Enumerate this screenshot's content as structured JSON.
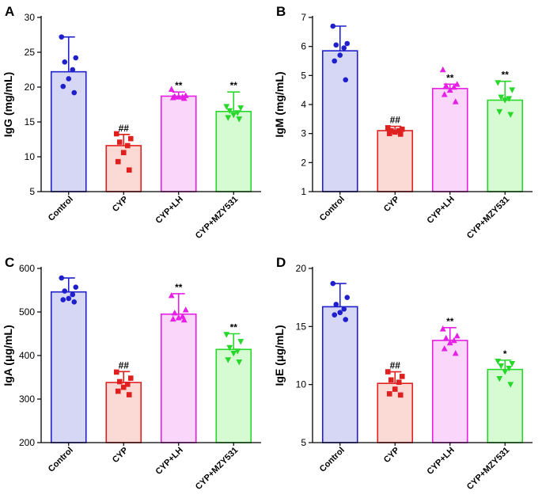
{
  "colors": {
    "blue": "#1f1fcc",
    "blue_fill": "#d6d6f5",
    "red": "#e0201f",
    "red_fill": "#fbd9d4",
    "magenta": "#e61ee6",
    "magenta_fill": "#fbd6fb",
    "green": "#27d82a",
    "green_fill": "#d6fbd3"
  },
  "chart_data": [
    {
      "panel": "A",
      "type": "bar",
      "ylabel": "IgG (mg/mL)",
      "ylim": [
        5,
        30
      ],
      "yticks": [
        5,
        10,
        15,
        20,
        25,
        30
      ],
      "categories": [
        "Control",
        "CYP",
        "CYP+LH",
        "CYP+MZY531"
      ],
      "values": [
        22.2,
        11.6,
        18.7,
        16.5
      ],
      "errors": [
        5.0,
        1.6,
        0.6,
        2.8
      ],
      "marker_shapes": [
        "circle",
        "square",
        "triangle-up",
        "triangle-down"
      ],
      "points": [
        [
          27.2,
          24.2,
          23.6,
          22.5,
          21.2,
          20.1,
          19.2
        ],
        [
          13.3,
          12.6,
          12.1,
          11.6,
          10.6,
          9.3,
          8.1
        ],
        [
          19.7,
          18.8,
          18.7,
          18.6,
          18.6,
          18.5,
          18.4
        ],
        [
          17.2,
          17.0,
          16.6,
          16.3,
          16.0,
          15.6,
          15.4
        ]
      ],
      "significance": [
        "",
        "##",
        "**",
        "**"
      ]
    },
    {
      "panel": "B",
      "type": "bar",
      "ylabel": "IgM (mg/mL)",
      "ylim": [
        1,
        7
      ],
      "yticks": [
        1,
        2,
        3,
        4,
        5,
        6,
        7
      ],
      "categories": [
        "Control",
        "CYP",
        "CYP+LH",
        "CYP+MZY531"
      ],
      "values": [
        5.85,
        3.1,
        4.55,
        4.15
      ],
      "errors": [
        0.85,
        0.15,
        0.15,
        0.65
      ],
      "marker_shapes": [
        "circle",
        "square",
        "triangle-up",
        "triangle-down"
      ],
      "points": [
        [
          6.7,
          6.1,
          6.05,
          5.95,
          5.7,
          5.5,
          4.85
        ],
        [
          3.2,
          3.15,
          3.1,
          3.1,
          3.05,
          3.0,
          2.98
        ],
        [
          5.2,
          4.7,
          4.65,
          4.6,
          4.5,
          4.35,
          4.1
        ],
        [
          4.75,
          4.5,
          4.25,
          4.2,
          4.15,
          3.75,
          3.65
        ]
      ],
      "significance": [
        "",
        "##",
        "**",
        "**"
      ]
    },
    {
      "panel": "C",
      "type": "bar",
      "ylabel": "IgA (μg/mL)",
      "ylim": [
        200,
        600
      ],
      "yticks": [
        200,
        300,
        400,
        500,
        600
      ],
      "categories": [
        "Control",
        "CYP",
        "CYP+LH",
        "CYP+MZY531"
      ],
      "values": [
        546,
        338,
        495,
        414
      ],
      "errors": [
        32,
        25,
        47,
        36
      ],
      "marker_shapes": [
        "circle",
        "square",
        "triangle-up",
        "triangle-down"
      ],
      "points": [
        [
          578,
          557,
          548,
          540,
          531,
          528,
          523
        ],
        [
          362,
          348,
          340,
          334,
          327,
          318,
          310
        ],
        [
          538,
          505,
          498,
          490,
          487,
          484,
          482
        ],
        [
          448,
          432,
          418,
          410,
          405,
          390,
          385
        ]
      ],
      "significance": [
        "",
        "##",
        "**",
        "**"
      ]
    },
    {
      "panel": "D",
      "type": "bar",
      "ylabel": "IgE (μg/mL)",
      "ylim": [
        5,
        20
      ],
      "yticks": [
        5,
        10,
        15,
        20
      ],
      "categories": [
        "Control",
        "CYP",
        "CYP+LH",
        "CYP+MZY531"
      ],
      "values": [
        16.7,
        10.1,
        13.8,
        11.3
      ],
      "errors": [
        2.0,
        1.0,
        1.1,
        0.8
      ],
      "marker_shapes": [
        "circle",
        "square",
        "triangle-up",
        "triangle-down"
      ],
      "points": [
        [
          18.7,
          17.5,
          16.9,
          16.5,
          16.2,
          16.0,
          15.6
        ],
        [
          11.1,
          10.7,
          10.4,
          10.2,
          9.6,
          9.2,
          9.1
        ],
        [
          14.8,
          14.2,
          14.0,
          13.8,
          13.6,
          13.1,
          12.7
        ],
        [
          12.0,
          11.8,
          11.6,
          11.4,
          11.1,
          10.5,
          10.0
        ]
      ],
      "significance": [
        "",
        "##",
        "**",
        "*"
      ]
    }
  ]
}
